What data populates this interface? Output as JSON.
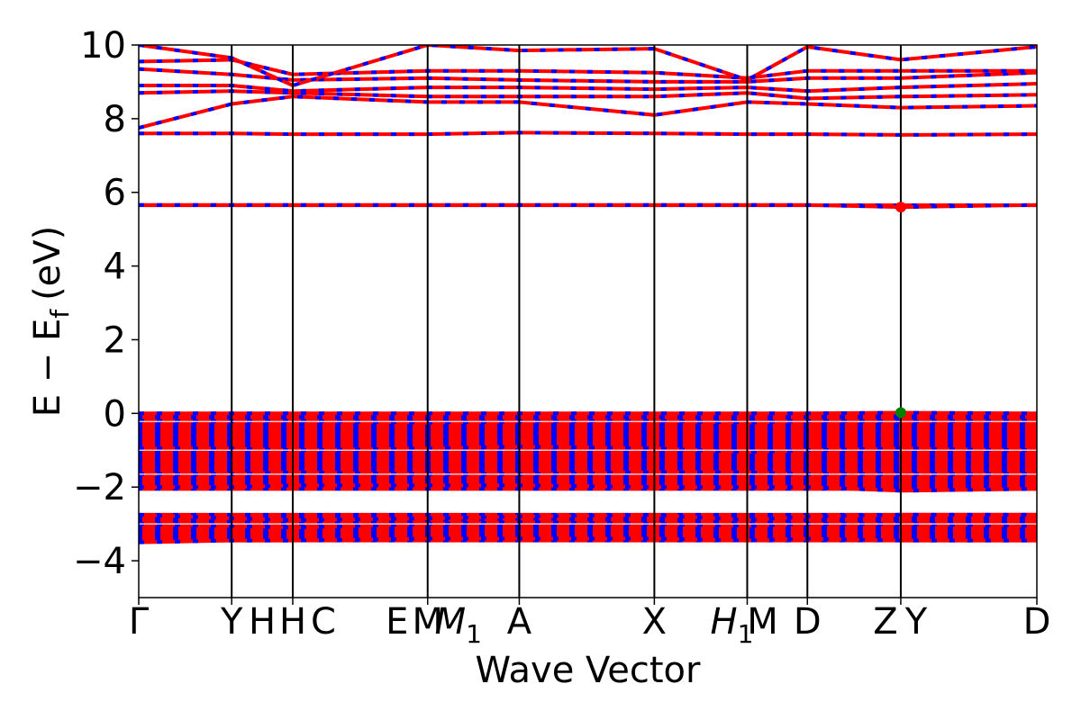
{
  "chart_data": {
    "type": "line",
    "xlabel": "Wave Vector",
    "ylabel": "E − E",
    "ylabel_sub": "f",
    "ylabel_unit": "(eV)",
    "ylim": [
      -5,
      10
    ],
    "yticks": [
      {
        "value": 10,
        "label": "10"
      },
      {
        "value": 8,
        "label": "8"
      },
      {
        "value": 6,
        "label": "6"
      },
      {
        "value": 4,
        "label": "4"
      },
      {
        "value": 2,
        "label": "2"
      },
      {
        "value": 0,
        "label": "0"
      },
      {
        "value": -2,
        "label": "−2"
      },
      {
        "value": -4,
        "label": "−4"
      }
    ],
    "grid": false,
    "colors": {
      "band_a": "#ff0000",
      "band_b": "#0000ff",
      "marker_high": "#ff0000",
      "marker_low": "#008000"
    },
    "xlim": [
      0,
      1
    ],
    "high_symmetry_points": [
      {
        "pos": 0.0,
        "label": "Γ"
      },
      {
        "pos": 0.1035,
        "label": "Y"
      },
      {
        "pos": 0.1715,
        "label": "H"
      },
      {
        "pos": 0.1715,
        "label": "H"
      },
      {
        "pos": 0.1715,
        "label": "C"
      },
      {
        "pos": 0.3217,
        "label": "E"
      },
      {
        "pos": 0.3217,
        "label": "M"
      },
      {
        "pos": 0.3217,
        "label": "M",
        "sub": "1"
      },
      {
        "pos": 0.4237,
        "label": "A"
      },
      {
        "pos": 0.5741,
        "label": "X"
      },
      {
        "pos": 0.6775,
        "label": "H",
        "sub": "1"
      },
      {
        "pos": 0.6775,
        "label": "M"
      },
      {
        "pos": 0.7445,
        "label": "D"
      },
      {
        "pos": 0.8485,
        "label": "Z"
      },
      {
        "pos": 0.8485,
        "label": "Y"
      },
      {
        "pos": 1.0,
        "label": "D"
      }
    ],
    "band_groups": [
      {
        "name": "upper-conduction",
        "y_min": 7.5,
        "y_max": 10.0
      },
      {
        "name": "flat-band",
        "y_min": 5.6,
        "y_max": 5.7
      },
      {
        "name": "valence-top",
        "y_min": -2.1,
        "y_max": 0.0
      },
      {
        "name": "valence-bottom",
        "y_min": -3.5,
        "y_max": -2.7
      }
    ],
    "bands": [
      {
        "name": "b1",
        "x": [
          0,
          0.1035,
          0.1715,
          0.3217,
          0.4237,
          0.5741,
          0.6775,
          0.7445,
          0.8485,
          1.0
        ],
        "y": [
          7.6,
          7.6,
          7.58,
          7.58,
          7.62,
          7.6,
          7.58,
          7.58,
          7.56,
          7.58
        ]
      },
      {
        "name": "b2",
        "x": [
          0,
          0.1035,
          0.1715,
          0.3217,
          0.4237,
          0.5741,
          0.6775,
          0.7445,
          0.8485,
          1.0
        ],
        "y": [
          7.75,
          8.4,
          8.6,
          8.45,
          8.45,
          8.1,
          8.45,
          8.4,
          8.3,
          8.35
        ]
      },
      {
        "name": "b3",
        "x": [
          0,
          0.1035,
          0.1715,
          0.3217,
          0.4237,
          0.5741,
          0.6775,
          0.7445,
          0.8485,
          1.0
        ],
        "y": [
          8.7,
          8.75,
          8.7,
          8.6,
          8.6,
          8.6,
          8.7,
          8.55,
          8.6,
          8.65
        ]
      },
      {
        "name": "b4",
        "x": [
          0,
          0.1035,
          0.1715,
          0.3217,
          0.4237,
          0.5741,
          0.6775,
          0.7445,
          0.8485,
          1.0
        ],
        "y": [
          8.9,
          8.9,
          8.75,
          8.85,
          8.85,
          8.8,
          8.85,
          8.75,
          8.85,
          8.95
        ]
      },
      {
        "name": "b5",
        "x": [
          0,
          0.1035,
          0.1715,
          0.3217,
          0.4237,
          0.5741,
          0.6775,
          0.7445,
          0.8485,
          1.0
        ],
        "y": [
          9.35,
          9.2,
          9.05,
          9.1,
          9.05,
          9.0,
          9.0,
          9.1,
          9.1,
          9.25
        ]
      },
      {
        "name": "b6",
        "x": [
          0,
          0.1035,
          0.1715,
          0.3217,
          0.4237,
          0.5741,
          0.6775,
          0.7445,
          0.8485,
          1.0
        ],
        "y": [
          9.55,
          9.6,
          9.2,
          9.3,
          9.3,
          9.25,
          9.1,
          9.3,
          9.3,
          9.3
        ]
      },
      {
        "name": "b7",
        "x": [
          0,
          0.1035,
          0.1715,
          0.3217,
          0.4237,
          0.5741,
          0.6775,
          0.7445,
          0.8485,
          1.0
        ],
        "y": [
          10.0,
          9.65,
          8.9,
          10.0,
          9.85,
          9.9,
          9.05,
          9.95,
          9.6,
          9.95
        ]
      },
      {
        "name": "b8",
        "x": [
          0,
          0.1035,
          0.1715,
          0.3217,
          0.4237,
          0.5741,
          0.6775,
          0.7445,
          0.8485,
          1.0
        ],
        "y": [
          5.66,
          5.66,
          5.66,
          5.66,
          5.66,
          5.66,
          5.66,
          5.66,
          5.6,
          5.66
        ]
      },
      {
        "name": "b9",
        "x": [
          0,
          0.1035,
          0.1715,
          0.3217,
          0.4237,
          0.5741,
          0.6775,
          0.7445,
          0.8485,
          1.0
        ],
        "y": [
          0.0,
          0.0,
          0.0,
          0.0,
          0.0,
          0.0,
          0.0,
          0.0,
          0.02,
          0.0
        ]
      },
      {
        "name": "b10",
        "x": [
          0,
          0.1035,
          0.1715,
          0.3217,
          0.4237,
          0.5741,
          0.6775,
          0.7445,
          0.8485,
          1.0
        ],
        "y": [
          -0.2,
          -0.22,
          -0.2,
          -0.25,
          -0.22,
          -0.2,
          -0.25,
          -0.2,
          -0.22,
          -0.2
        ]
      },
      {
        "name": "b11",
        "x": [
          0,
          0.1035,
          0.1715,
          0.3217,
          0.4237,
          0.5741,
          0.6775,
          0.7445,
          0.8485,
          1.0
        ],
        "y": [
          -0.95,
          -0.95,
          -1.0,
          -0.95,
          -0.9,
          -0.95,
          -1.05,
          -1.0,
          -0.95,
          -1.0
        ]
      },
      {
        "name": "b12",
        "x": [
          0,
          0.1035,
          0.1715,
          0.3217,
          0.4237,
          0.5741,
          0.6775,
          0.7445,
          0.8485,
          1.0
        ],
        "y": [
          -1.65,
          -1.65,
          -1.6,
          -1.65,
          -1.65,
          -1.6,
          -1.6,
          -1.65,
          -1.65,
          -1.65
        ]
      },
      {
        "name": "b13",
        "x": [
          0,
          0.1035,
          0.1715,
          0.3217,
          0.4237,
          0.5741,
          0.6775,
          0.7445,
          0.8485,
          1.0
        ],
        "y": [
          -2.0,
          -2.0,
          -1.95,
          -1.95,
          -1.95,
          -2.0,
          -2.0,
          -2.0,
          -2.1,
          -2.05
        ]
      },
      {
        "name": "b14",
        "x": [
          0,
          0.1035,
          0.1715,
          0.3217,
          0.4237,
          0.5741,
          0.6775,
          0.7445,
          0.8485,
          1.0
        ],
        "y": [
          -2.75,
          -2.85,
          -2.9,
          -2.85,
          -2.8,
          -2.75,
          -2.9,
          -2.8,
          -2.75,
          -2.75
        ]
      },
      {
        "name": "b15",
        "x": [
          0,
          0.1035,
          0.1715,
          0.3217,
          0.4237,
          0.5741,
          0.6775,
          0.7445,
          0.8485,
          1.0
        ],
        "y": [
          -3.0,
          -3.05,
          -3.1,
          -3.0,
          -2.95,
          -3.0,
          -3.05,
          -3.0,
          -3.0,
          -3.05
        ]
      },
      {
        "name": "b16",
        "x": [
          0,
          0.1035,
          0.1715,
          0.3217,
          0.4237,
          0.5741,
          0.6775,
          0.7445,
          0.8485,
          1.0
        ],
        "y": [
          -3.5,
          -3.45,
          -3.45,
          -3.4,
          -3.4,
          -3.4,
          -3.45,
          -3.4,
          -3.45,
          -3.45
        ]
      }
    ],
    "markers": [
      {
        "x": 0.8485,
        "y": 5.6,
        "color_key": "marker_high"
      },
      {
        "x": 0.8485,
        "y": 0.02,
        "color_key": "marker_low"
      }
    ]
  }
}
